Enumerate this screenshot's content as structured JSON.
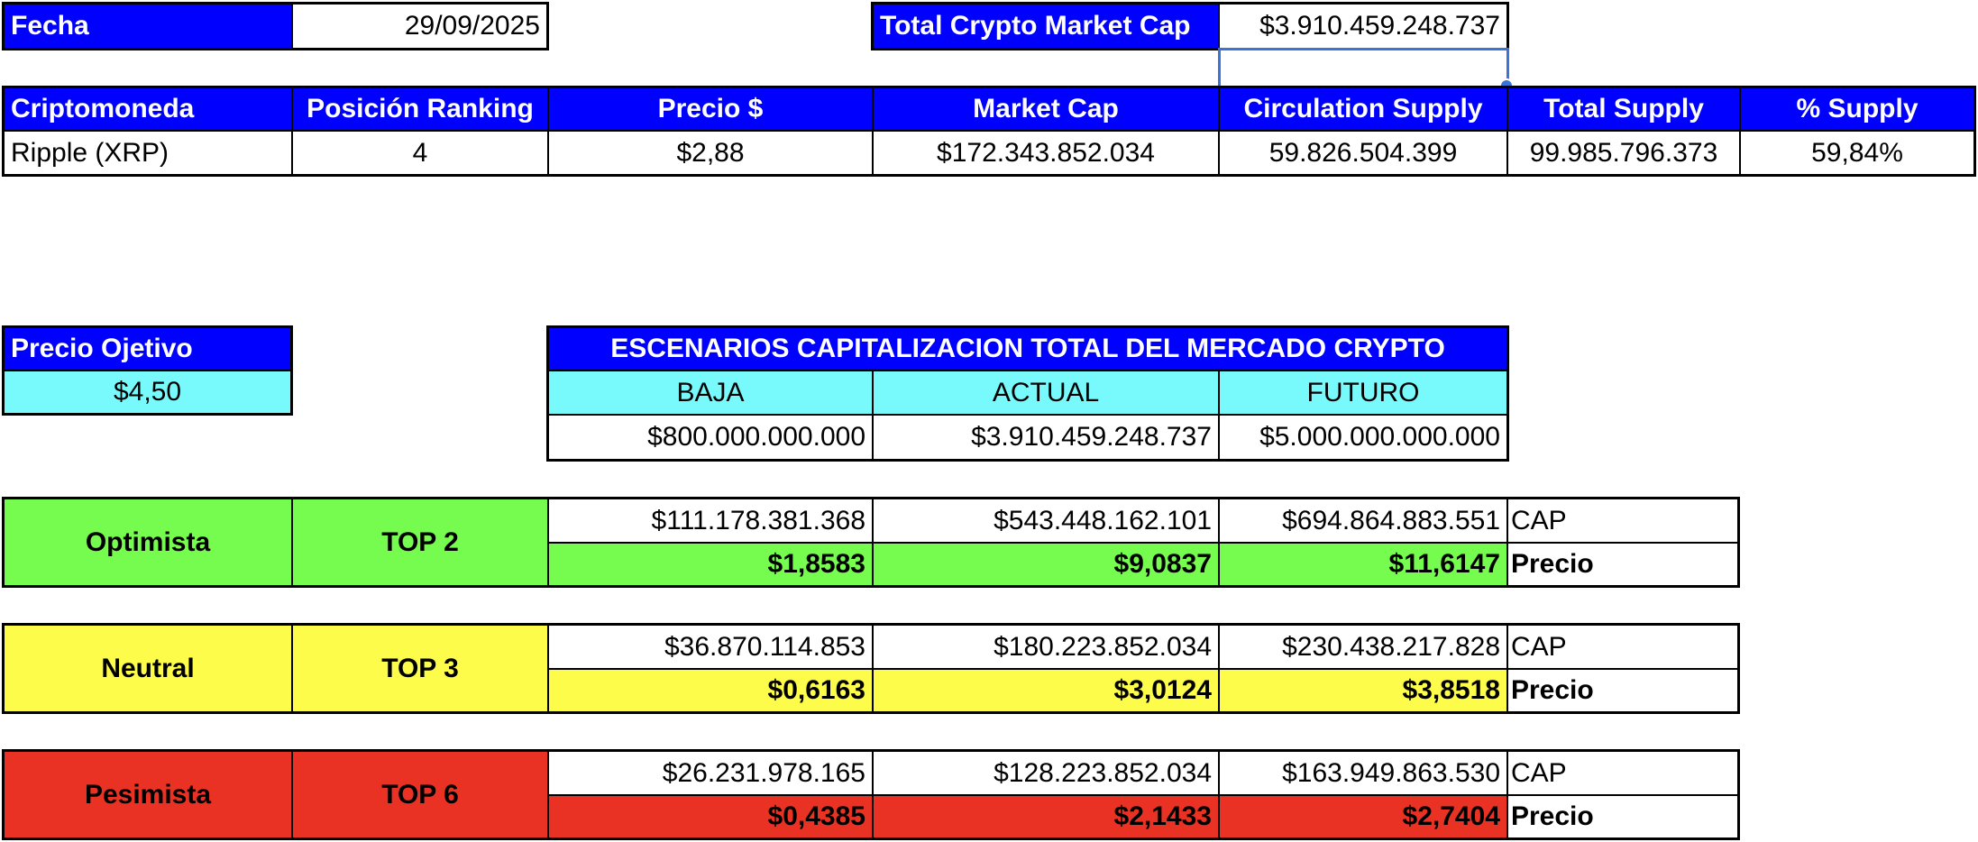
{
  "header": {
    "fecha_label": "Fecha",
    "fecha_value": "29/09/2025",
    "total_cap_label": "Total Crypto Market Cap",
    "total_cap_value": "$3.910.459.248.737"
  },
  "crypto_table": {
    "headers": [
      "Criptomoneda",
      "Posición Ranking",
      "Precio $",
      "Market Cap",
      "Circulation Supply",
      "Total Supply",
      "% Supply"
    ],
    "row": [
      "Ripple (XRP)",
      "4",
      "$2,88",
      "$172.343.852.034",
      "59.826.504.399",
      "99.985.796.373",
      "59,84%"
    ]
  },
  "objetivo": {
    "label": "Precio Ojetivo",
    "value": "$4,50"
  },
  "escenarios": {
    "title": "ESCENARIOS CAPITALIZACION TOTAL DEL MERCADO CRYPTO",
    "columns": [
      "BAJA",
      "ACTUAL",
      "FUTURO"
    ],
    "values": [
      "$800.000.000.000",
      "$3.910.459.248.737",
      "$5.000.000.000.000"
    ]
  },
  "scenarios": [
    {
      "name": "Optimista",
      "top": "TOP 2",
      "caps": [
        "$111.178.381.368",
        "$543.448.162.101",
        "$694.864.883.551"
      ],
      "cap_label": "CAP",
      "prices": [
        "$1,8583",
        "$9,0837",
        "$11,6147"
      ],
      "price_label": "Precio",
      "color": "#76fb4f"
    },
    {
      "name": "Neutral",
      "top": "TOP 3",
      "caps": [
        "$36.870.114.853",
        "$180.223.852.034",
        "$230.438.217.828"
      ],
      "cap_label": "CAP",
      "prices": [
        "$0,6163",
        "$3,0124",
        "$3,8518"
      ],
      "price_label": "Precio",
      "color": "#fdfc4a"
    },
    {
      "name": "Pesimista",
      "top": "TOP 6",
      "caps": [
        "$26.231.978.165",
        "$128.223.852.034",
        "$163.949.863.530"
      ],
      "cap_label": "CAP",
      "prices": [
        "$0,4385",
        "$2,1433",
        "$2,7404"
      ],
      "price_label": "Precio",
      "color": "#e93224"
    }
  ],
  "colors": {
    "header_blue": "#0000ff",
    "cyan": "#78fafc",
    "selection": "#3b73d9"
  }
}
